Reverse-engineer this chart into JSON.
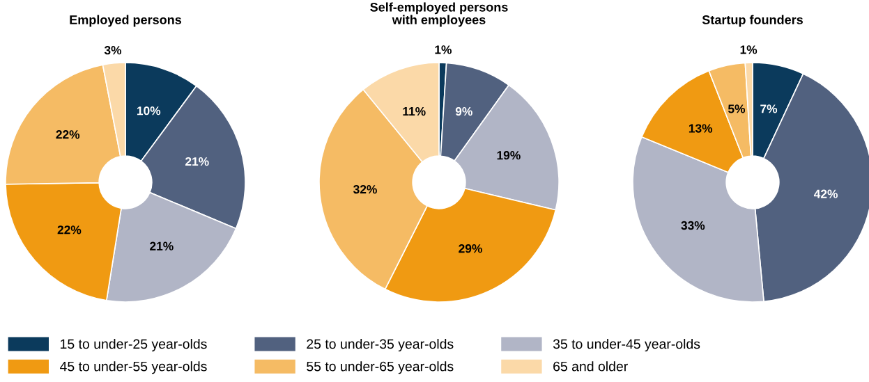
{
  "chart_data": [
    {
      "type": "donut",
      "title": "Employed persons",
      "categories": [
        "15 to under-25 year-olds",
        "25 to under-35 year-olds",
        "35 to under-45 year-olds",
        "45 to under-55 year-olds",
        "55 to under-65 year-olds",
        "65 and older"
      ],
      "values": [
        10,
        21,
        21,
        22,
        22,
        3
      ],
      "colors": [
        "#0b3a5c",
        "#51617f",
        "#b1b5c6",
        "#f09a12",
        "#f5bb64",
        "#fbd9a8"
      ],
      "value_labels": [
        "10%",
        "21%",
        "21%",
        "22%",
        "22%",
        "3%"
      ],
      "legend": "bottom"
    },
    {
      "type": "donut",
      "title": "Self-employed persons\nwith employees",
      "categories": [
        null,
        null,
        null,
        null,
        null,
        null
      ],
      "values": [
        1,
        9,
        19,
        29,
        32,
        11
      ],
      "colors": [
        "#0b3a5c",
        "#51617f",
        "#b1b5c6",
        "#f09a12",
        "#f5bb64",
        "#fbd9a8"
      ],
      "value_labels": [
        "1%",
        "9%",
        "19%",
        "29%",
        "32%",
        "11%"
      ]
    },
    {
      "type": "donut",
      "title": "Startup founders",
      "categories": [
        null,
        null,
        null,
        null,
        null,
        null
      ],
      "values": [
        7,
        42,
        33,
        13,
        5,
        1
      ],
      "colors": [
        "#0b3a5c",
        "#51617f",
        "#b1b5c6",
        "#f09a12",
        "#f5bb64",
        "#fbd9a8"
      ],
      "value_labels": [
        "7%",
        "42%",
        "33%",
        "13%",
        "5%",
        "1%"
      ]
    }
  ]
}
